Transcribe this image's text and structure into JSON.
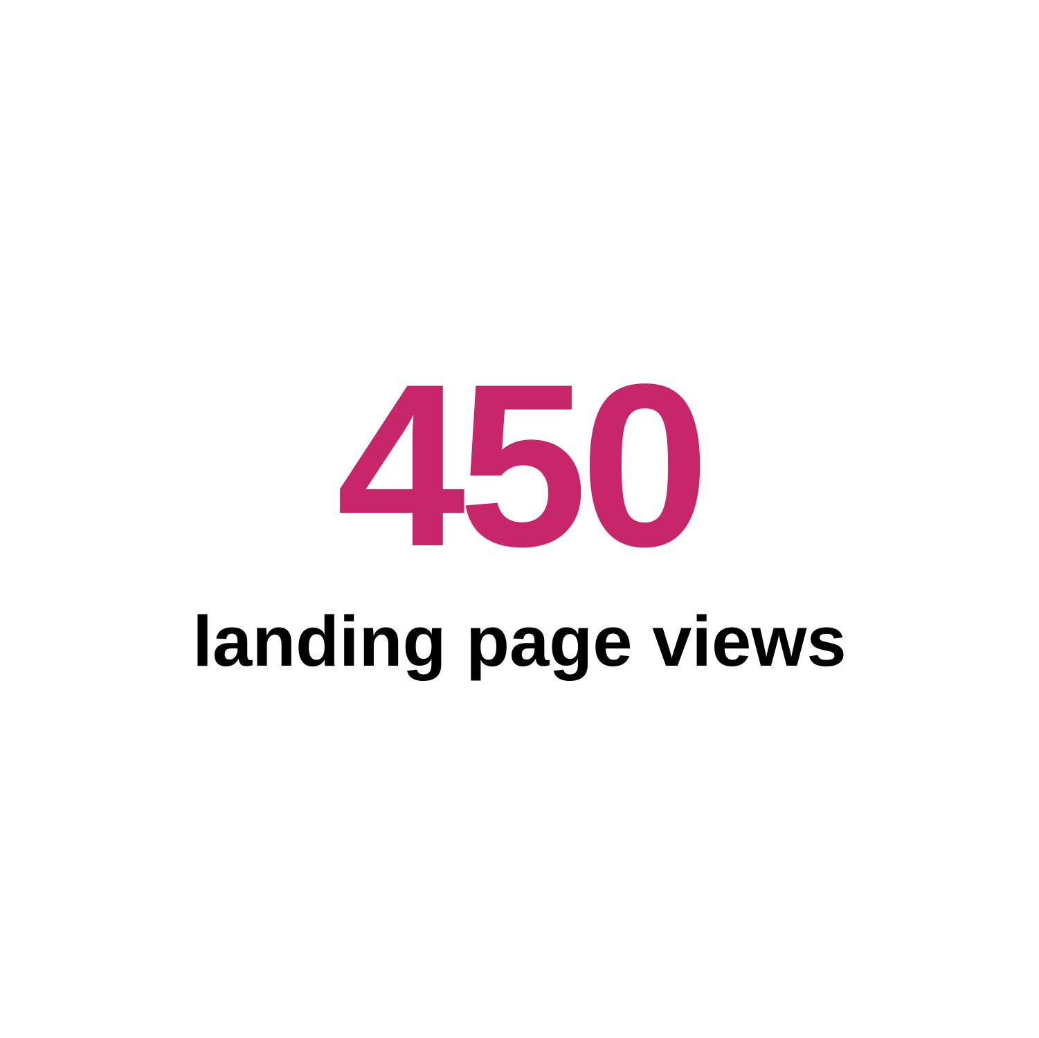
{
  "stat": {
    "value": "450",
    "label": "landing page views"
  },
  "colors": {
    "value": "#c8266a",
    "label": "#000000",
    "background": "#ffffff"
  }
}
